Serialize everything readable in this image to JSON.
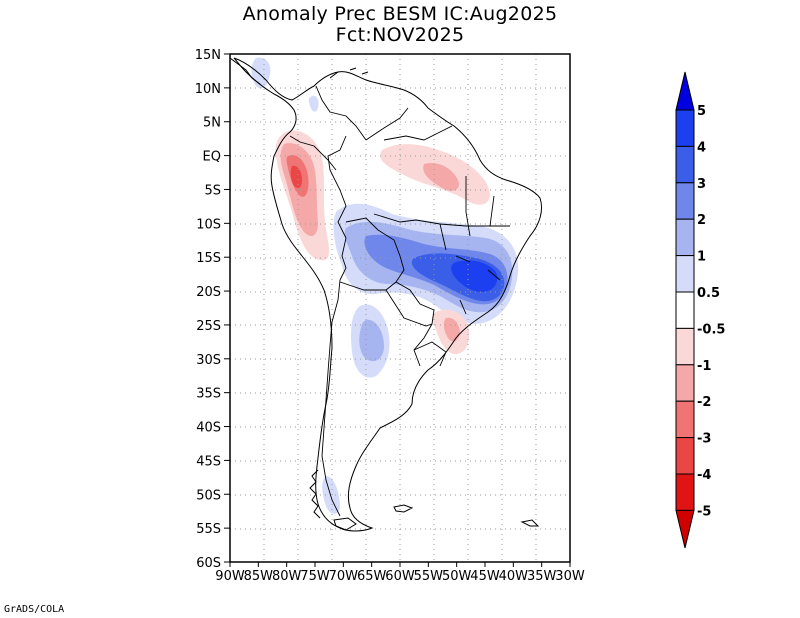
{
  "title": {
    "line1": "Anomaly Prec BESM IC:Aug2025",
    "line2": "Fct:NOV2025"
  },
  "credit": "GrADS/COLA",
  "map": {
    "lat_labels": [
      "15N",
      "10N",
      "5N",
      "EQ",
      "5S",
      "10S",
      "15S",
      "20S",
      "25S",
      "30S",
      "35S",
      "40S",
      "45S",
      "50S",
      "55S",
      "60S"
    ],
    "lon_labels": [
      "90W",
      "85W",
      "80W",
      "75W",
      "70W",
      "65W",
      "60W",
      "55W",
      "50W",
      "45W",
      "40W",
      "35W",
      "30W"
    ]
  },
  "colorbar": {
    "labels": [
      "5",
      "4",
      "3",
      "2",
      "1",
      "0.5",
      "-0.5",
      "-1",
      "-2",
      "-3",
      "-4",
      "-5"
    ],
    "colors": [
      "#0000e0",
      "#1c3ff0",
      "#3a5ee8",
      "#6f86ea",
      "#a6b4f0",
      "#d4dcfa",
      "#ffffff",
      "#fbd8d8",
      "#f5a8a8",
      "#f07474",
      "#ea4646",
      "#e01414",
      "#d00000"
    ]
  }
}
